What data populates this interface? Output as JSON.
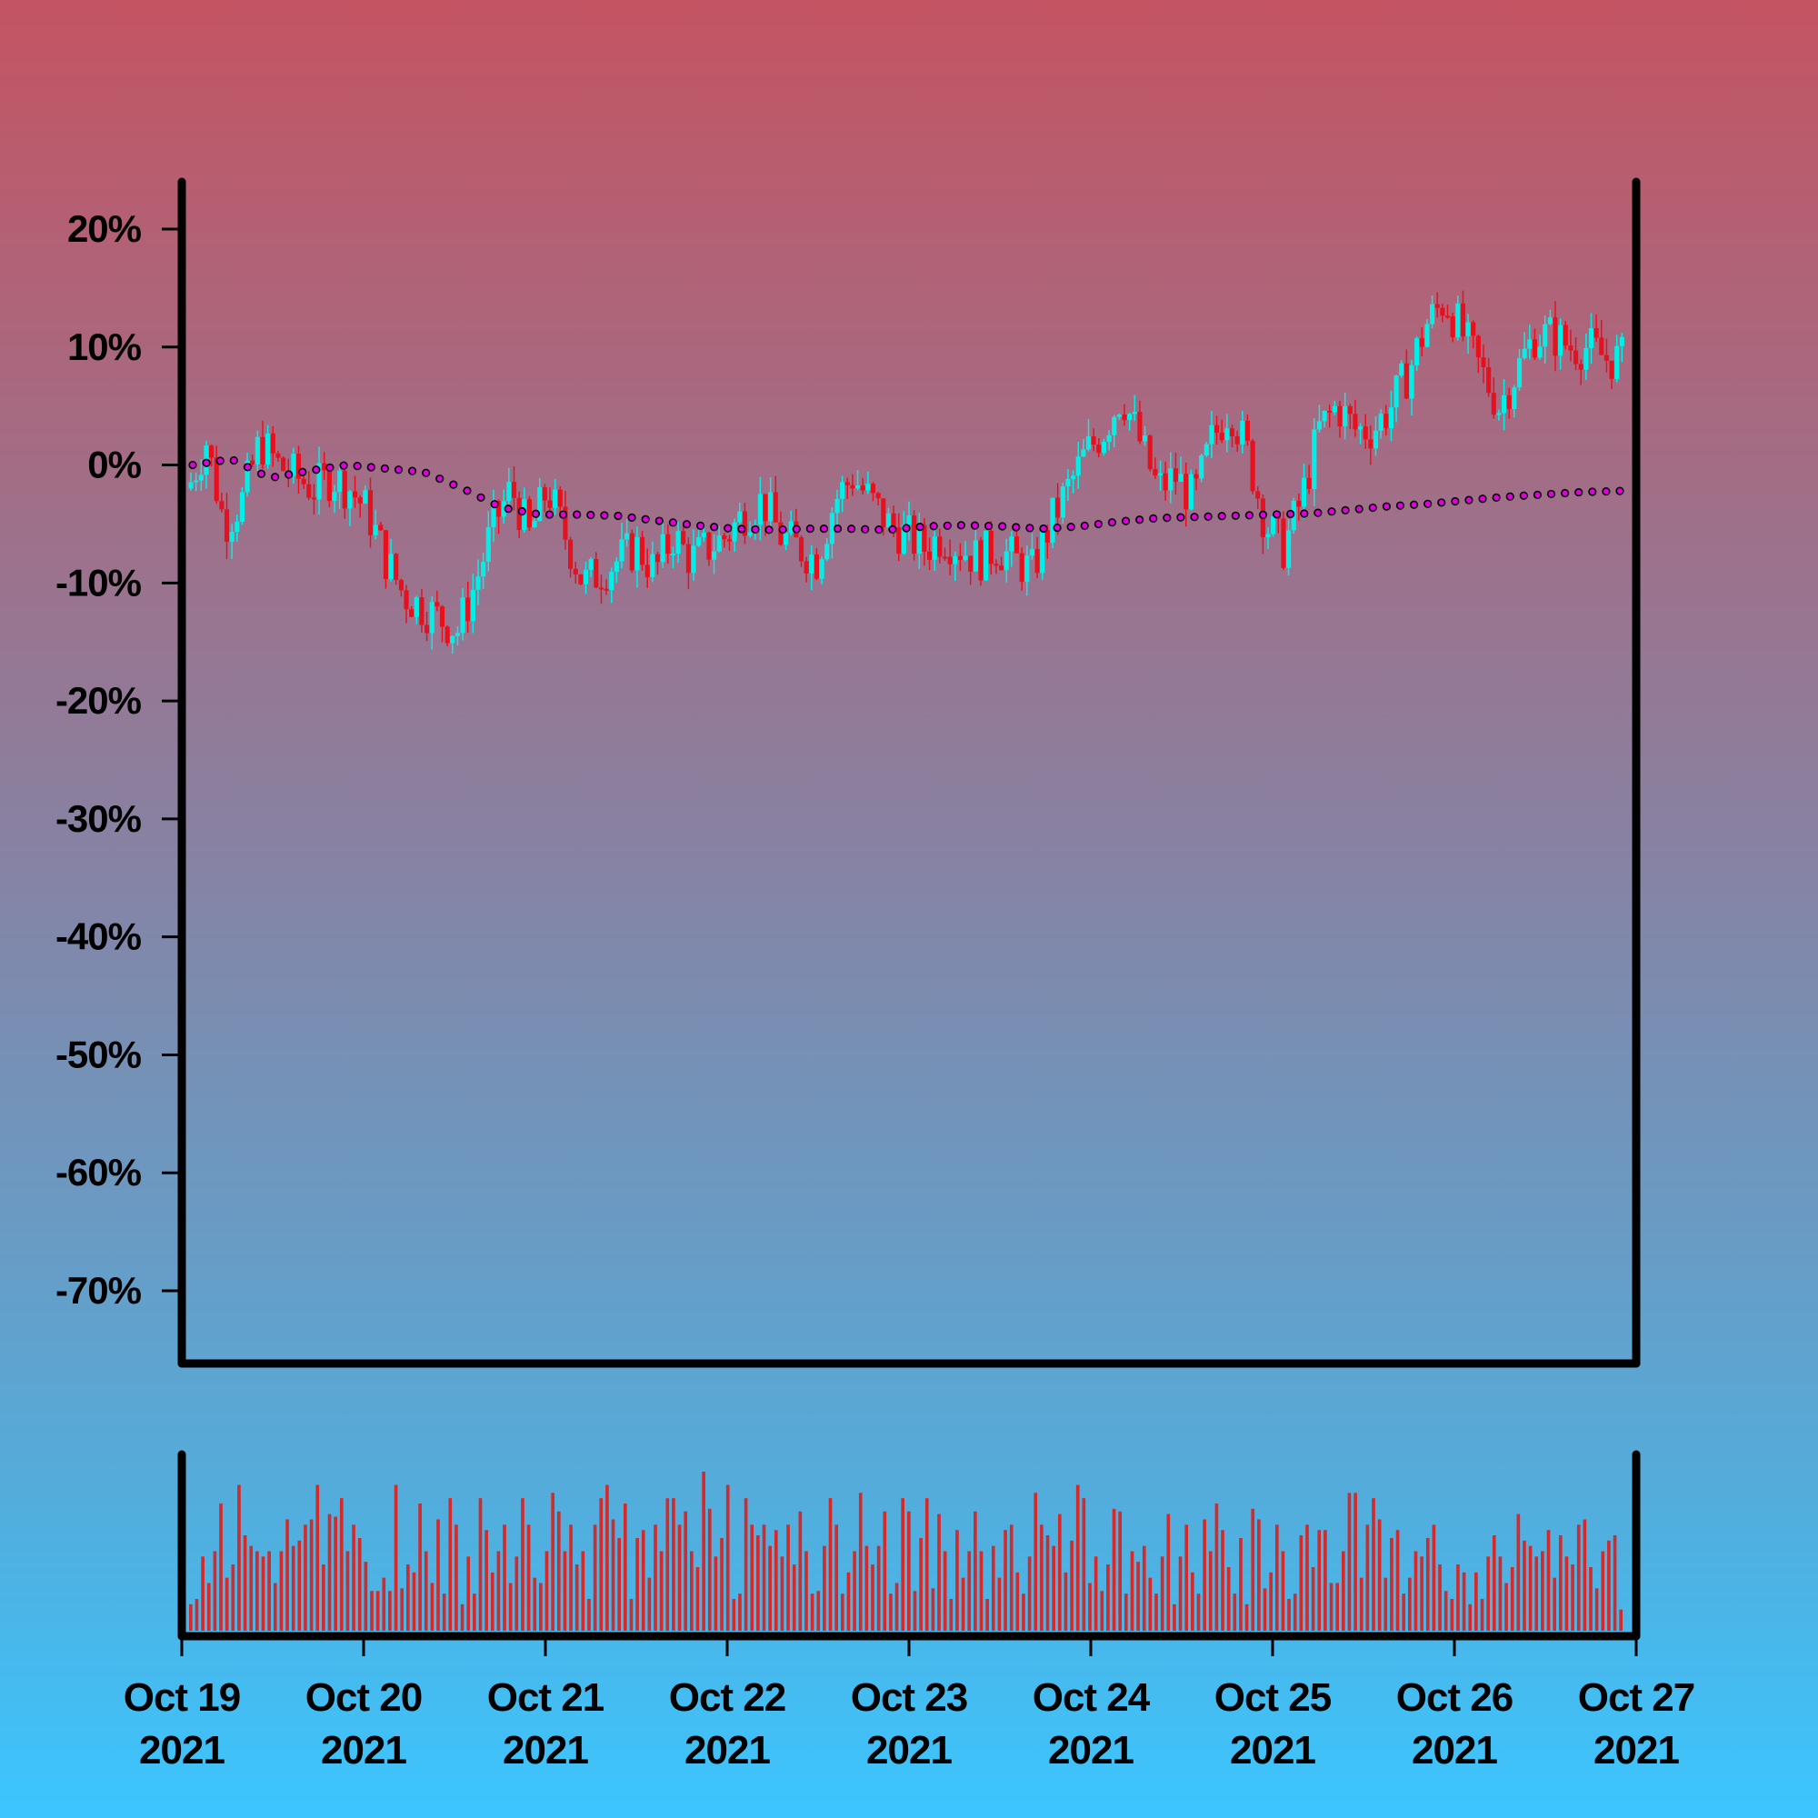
{
  "chart_data": {
    "type": "candlestick",
    "y_axis": {
      "format": "percent",
      "ylim": [
        -76,
        24
      ],
      "ticks": [
        20,
        10,
        0,
        -10,
        -20,
        -30,
        -40,
        -50,
        -60,
        -70
      ],
      "tick_labels": [
        "20%",
        "10%",
        "0%",
        "-10%",
        "-20%",
        "-30%",
        "-40%",
        "-50%",
        "-60%",
        "-70%"
      ]
    },
    "x_axis": {
      "tick_labels": [
        {
          "line1": "Oct 19",
          "line2": "2021"
        },
        {
          "line1": "Oct 20",
          "line2": "2021"
        },
        {
          "line1": "Oct 21",
          "line2": "2021"
        },
        {
          "line1": "Oct 22",
          "line2": "2021"
        },
        {
          "line1": "Oct 23",
          "line2": "2021"
        },
        {
          "line1": "Oct 24",
          "line2": "2021"
        },
        {
          "line1": "Oct 25",
          "line2": "2021"
        },
        {
          "line1": "Oct 26",
          "line2": "2021"
        },
        {
          "line1": "Oct 27",
          "line2": "2021"
        }
      ],
      "range": [
        "2021-10-19",
        "2021-10-27"
      ]
    },
    "series": [
      {
        "kind": "candlestick_close_path",
        "description_colors": {
          "up": "#00f0e8",
          "down": "#e8101c"
        },
        "x_days": [
          0,
          0.1,
          0.2,
          0.3,
          0.4,
          0.5,
          0.6,
          0.7,
          0.8,
          0.9,
          1.0,
          1.1,
          1.2,
          1.3,
          1.4,
          1.5,
          1.6,
          1.7,
          1.8,
          1.9,
          2.0,
          2.1,
          2.2,
          2.3,
          2.4,
          2.5,
          2.6,
          2.7,
          2.8,
          2.9,
          3.0,
          3.1,
          3.2,
          3.3,
          3.4,
          3.5,
          3.6,
          3.7,
          3.8,
          3.9,
          4.0,
          4.1,
          4.2,
          4.3,
          4.4,
          4.5,
          4.6,
          4.7,
          4.8,
          4.9,
          5.0,
          5.1,
          5.2,
          5.3,
          5.4,
          5.5,
          5.6,
          5.7,
          5.8,
          5.9,
          6.0,
          6.1,
          6.2,
          6.3,
          6.4,
          6.5,
          6.6,
          6.7,
          6.8,
          6.9,
          7.0,
          7.1,
          7.2,
          7.3,
          7.4,
          7.5,
          7.6,
          7.7,
          7.8,
          7.9,
          8.0
        ],
        "close_pct": [
          -2,
          2,
          -5,
          -3,
          2,
          0,
          -1,
          -2,
          -1,
          -2,
          -4,
          -8,
          -11,
          -12,
          -13,
          -14,
          -10,
          -5,
          -2,
          -6,
          -2,
          -6,
          -10,
          -9,
          -8,
          -7,
          -9,
          -6,
          -8,
          -7,
          -6,
          -4,
          -3,
          -6,
          -7,
          -8,
          -3,
          -1,
          -3,
          -5,
          -6,
          -7,
          -6,
          -7,
          -8,
          -7,
          -8,
          -9,
          -5,
          -2,
          1,
          3,
          6,
          2,
          -2,
          -1,
          -3,
          2,
          5,
          1,
          -5,
          -7,
          -3,
          3,
          5,
          3,
          3,
          5,
          8,
          12,
          14,
          11,
          8,
          5,
          8,
          11,
          11,
          10,
          10,
          9,
          9
        ],
        "ma_pct": [
          0,
          0.5,
          -1.1,
          -0.5,
          0,
          -0.3,
          -0.6,
          -2,
          -3.6,
          -4.2,
          -4.2,
          -4.3,
          -4.7,
          -5.1,
          -5.4,
          -5.5,
          -5.4,
          -5.4,
          -5.5,
          -5.2,
          -5.1,
          -5.2,
          -5.4,
          -5.2,
          -4.8,
          -4.5,
          -4.4,
          -4.3,
          -4.2,
          -4.1,
          -3.8,
          -3.5,
          -3.3,
          -3.0,
          -2.7,
          -2.5,
          -2.3,
          -2.2
        ]
      }
    ],
    "volume": {
      "color": "#d42a2a",
      "bars": [
        10,
        12,
        28,
        18,
        30,
        48,
        20,
        25,
        55,
        36,
        32,
        30,
        28,
        30,
        18,
        30,
        42,
        32,
        34,
        40,
        42,
        55,
        25,
        44,
        43,
        50,
        30,
        40,
        35,
        26,
        15,
        15,
        20,
        15,
        55,
        16,
        25,
        22,
        48,
        30,
        18,
        42,
        14,
        50,
        40,
        10,
        28,
        14,
        50,
        38,
        22,
        30,
        40,
        18,
        28,
        50,
        40,
        20,
        18,
        30,
        52,
        45,
        30,
        40,
        25,
        30,
        12,
        40,
        50,
        55,
        42,
        35,
        48,
        12,
        35,
        38,
        20,
        40,
        30,
        50,
        50,
        40,
        45,
        30,
        24,
        60,
        46,
        28,
        35,
        55,
        12,
        14,
        50,
        40,
        36,
        40,
        32,
        38,
        28,
        40,
        25,
        45,
        30,
        14,
        15,
        32,
        50,
        40,
        14,
        22,
        30,
        52,
        32,
        25,
        32,
        45,
        14,
        18,
        50,
        45,
        15,
        35,
        50,
        16,
        44,
        30,
        12,
        38,
        20,
        30,
        45,
        30,
        12,
        32,
        20,
        38,
        40,
        22,
        14,
        28,
        52,
        40,
        36,
        32,
        44,
        22,
        34,
        55,
        50,
        18,
        28,
        15,
        25,
        46,
        45,
        14,
        30,
        26,
        32,
        20,
        14,
        28,
        44,
        10,
        28,
        40,
        22,
        14,
        42,
        30,
        48,
        38,
        24,
        14,
        35,
        10,
        46,
        42,
        16,
        22,
        40,
        30,
        12,
        14,
        36,
        40,
        24,
        38,
        38,
        18,
        18,
        30,
        52,
        52,
        20,
        40,
        50,
        42,
        20,
        35,
        38,
        14,
        20,
        30,
        28,
        35,
        40,
        25,
        15,
        12,
        25,
        22,
        10,
        22,
        12,
        28,
        36,
        28,
        18,
        24,
        44,
        34,
        32,
        28,
        30,
        38,
        20,
        36,
        28,
        25,
        40,
        42,
        24,
        16,
        30,
        34,
        36,
        8
      ]
    }
  }
}
